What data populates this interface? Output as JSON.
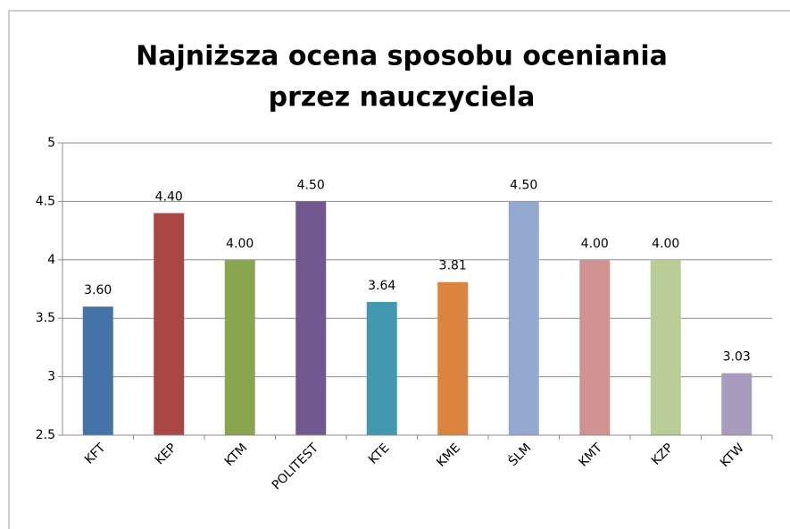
{
  "chart_data": {
    "type": "bar",
    "title": [
      "Najniższa ocena sposobu oceniania",
      "przez nauczyciela"
    ],
    "categories": [
      "KFT",
      "KEP",
      "KTM",
      "POLITEST",
      "KTE",
      "KME",
      "ŚLM",
      "KMT",
      "KZP",
      "KTW"
    ],
    "values": [
      3.6,
      4.4,
      4.0,
      4.5,
      3.64,
      3.81,
      4.5,
      4.0,
      4.0,
      3.03
    ],
    "value_labels": [
      "3.60",
      "4.40",
      "4.00",
      "4.50",
      "3.64",
      "3.81",
      "4.50",
      "4.00",
      "4.00",
      "3.03"
    ],
    "colors": [
      "#4572a7",
      "#aa4643",
      "#89a54e",
      "#71588f",
      "#4198af",
      "#db843d",
      "#93a9cf",
      "#d19392",
      "#b9cd96",
      "#a99bbd"
    ],
    "ylim": [
      2.5,
      5
    ],
    "yticks": [
      2.5,
      3,
      3.5,
      4,
      4.5,
      5
    ],
    "grid": true
  }
}
